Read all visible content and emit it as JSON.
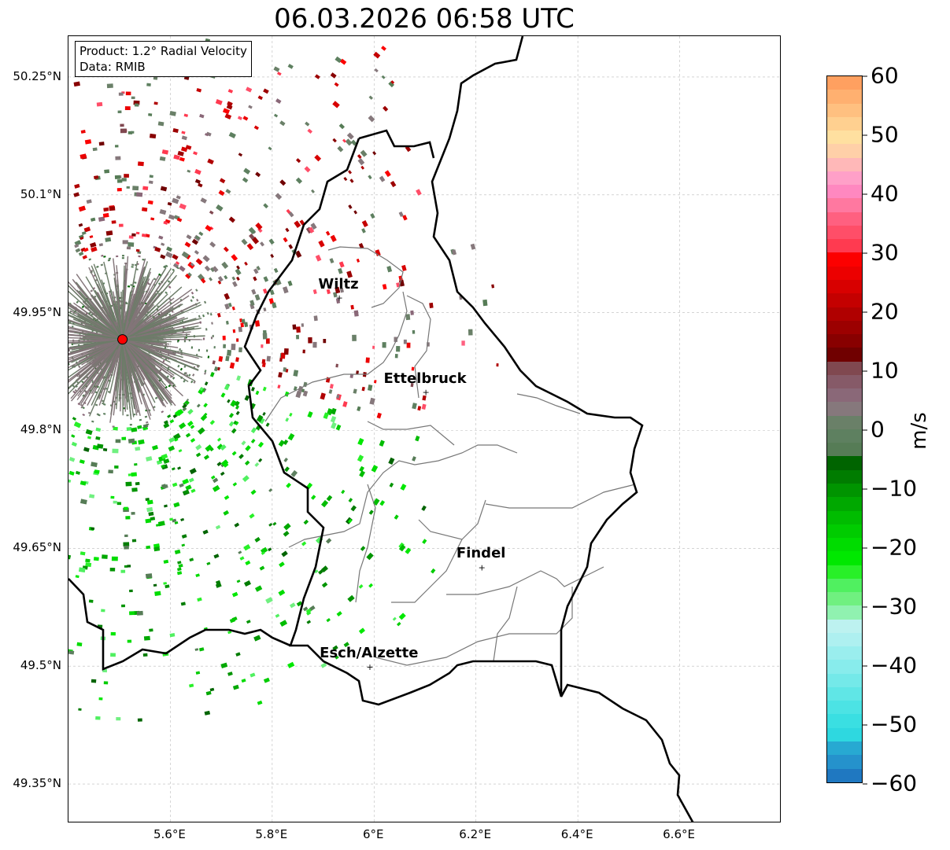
{
  "title": "06.03.2026 06:58 UTC",
  "legend": {
    "product": "Product: 1.2° Radial Velocity",
    "data": "Data: RMIB"
  },
  "map": {
    "lon_range": [
      5.4,
      6.8
    ],
    "lat_range": [
      49.3,
      50.302
    ],
    "lat_ticks": [
      {
        "v": 50.25,
        "label": "50.25°N"
      },
      {
        "v": 50.1,
        "label": "50.1°N"
      },
      {
        "v": 49.95,
        "label": "49.95°N"
      },
      {
        "v": 49.8,
        "label": "49.8°N"
      },
      {
        "v": 49.65,
        "label": "49.65°N"
      },
      {
        "v": 49.5,
        "label": "49.5°N"
      },
      {
        "v": 49.35,
        "label": "49.35°N"
      }
    ],
    "lon_ticks": [
      {
        "v": 5.6,
        "label": "5.6°E"
      },
      {
        "v": 5.8,
        "label": "5.8°E"
      },
      {
        "v": 6.0,
        "label": "6°E"
      },
      {
        "v": 6.2,
        "label": "6.2°E"
      },
      {
        "v": 6.4,
        "label": "6.4°E"
      },
      {
        "v": 6.6,
        "label": "6.6°E"
      }
    ],
    "radar": {
      "lon": 5.506,
      "lat": 49.916,
      "color": "#ff0000"
    },
    "cities": [
      {
        "name": "Wiltz",
        "lon": 5.93,
        "lat": 49.969
      },
      {
        "name": "Ettelbruck",
        "lon": 6.1,
        "lat": 49.849
      },
      {
        "name": "Findel",
        "lon": 6.21,
        "lat": 49.626
      },
      {
        "name": "Esch/Alzette",
        "lon": 5.99,
        "lat": 49.499
      }
    ]
  },
  "colorbar": {
    "label": "m/s",
    "min": -60,
    "max": 60,
    "ticks": [
      {
        "v": 60,
        "label": "60"
      },
      {
        "v": 50,
        "label": "50"
      },
      {
        "v": 40,
        "label": "40"
      },
      {
        "v": 30,
        "label": "30"
      },
      {
        "v": 20,
        "label": "20"
      },
      {
        "v": 10,
        "label": "10"
      },
      {
        "v": 0,
        "label": "0"
      },
      {
        "v": -10,
        "label": "−10"
      },
      {
        "v": -20,
        "label": "−20"
      },
      {
        "v": -30,
        "label": "−30"
      },
      {
        "v": -40,
        "label": "−40"
      },
      {
        "v": -50,
        "label": "−50"
      },
      {
        "v": -60,
        "label": "−60"
      }
    ],
    "colors": [
      "#1f78c1",
      "#2592cc",
      "#27a9d2",
      "#2ed8e0",
      "#3adfe2",
      "#4ce3e4",
      "#60e6e6",
      "#74e9e9",
      "#88ecec",
      "#9aeeee",
      "#aef0f0",
      "#bdf2f0",
      "#90f2b0",
      "#70f080",
      "#50f060",
      "#28f028",
      "#00e800",
      "#00dc00",
      "#00cc00",
      "#00bc00",
      "#00a800",
      "#009400",
      "#007c00",
      "#006400",
      "#567c56",
      "#5e8060",
      "#6a8068",
      "#86787c",
      "#8a6878",
      "#865a68",
      "#804850",
      "#700000",
      "#880000",
      "#9c0000",
      "#b00000",
      "#c40000",
      "#d80000",
      "#ec0000",
      "#fc0000",
      "#ff3a50",
      "#ff4e68",
      "#ff6080",
      "#ff78a0",
      "#ff88c0",
      "#ffa0c8",
      "#ffb8b8",
      "#ffd0a8",
      "#ffe0a0",
      "#ffd090",
      "#ffc080",
      "#ffb070",
      "#ffa060"
    ]
  }
}
